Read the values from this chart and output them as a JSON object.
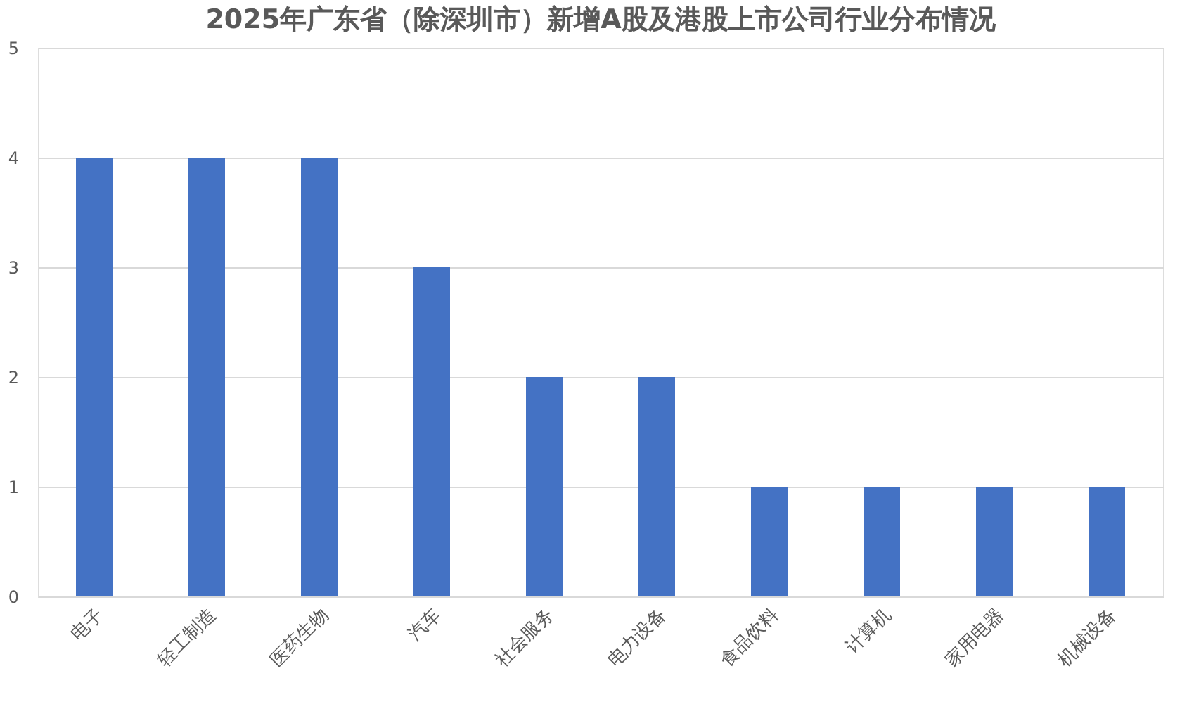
{
  "chart_data": {
    "type": "bar",
    "title": "2025年广东省（除深圳市）新增A股及港股上市公司行业分布情况",
    "categories": [
      "电子",
      "轻工制造",
      "医药生物",
      "汽车",
      "社会服务",
      "电力设备",
      "食品饮料",
      "计算机",
      "家用电器",
      "机械设备"
    ],
    "values": [
      4,
      4,
      4,
      3,
      2,
      2,
      1,
      1,
      1,
      1
    ],
    "color": "#4472c4",
    "ylim": [
      0,
      5
    ],
    "yticks": [
      0,
      1,
      2,
      3,
      4,
      5
    ],
    "grid": "y"
  }
}
